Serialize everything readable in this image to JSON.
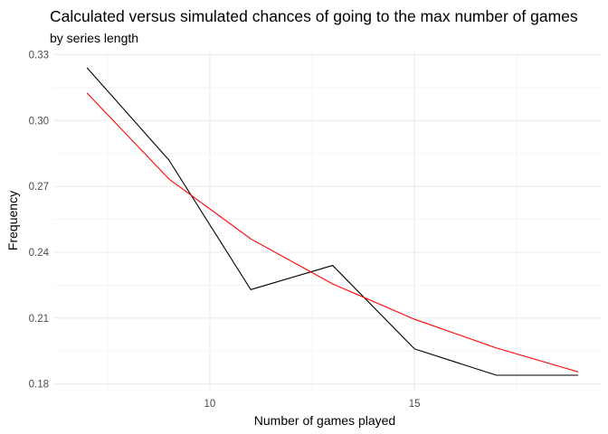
{
  "chart_data": {
    "type": "line",
    "title": "Calculated versus simulated chances of going to the max number of games",
    "subtitle": "by series length",
    "xlabel": "Number of games played",
    "ylabel": "Frequency",
    "xlim": [
      6.2,
      19.55
    ],
    "ylim": [
      0.177,
      0.331
    ],
    "x_ticks": [
      10,
      15
    ],
    "x_minor_ticks": [
      7.5,
      12.5,
      17.5
    ],
    "y_ticks": [
      0.18,
      0.21,
      0.24,
      0.27,
      0.3,
      0.33
    ],
    "y_tick_labels": [
      "0.18",
      "0.21",
      "0.24",
      "0.27",
      "0.30",
      "0.33"
    ],
    "y_minor_ticks": [
      0.195,
      0.225,
      0.255,
      0.285,
      0.315
    ],
    "x_tick_labels": [
      "10",
      "15"
    ],
    "grid": true,
    "legend": "none",
    "series": [
      {
        "color": "#000000",
        "x": [
          7,
          9,
          11,
          13,
          15,
          17,
          19
        ],
        "y": [
          0.324,
          0.282,
          0.223,
          0.234,
          0.196,
          0.184,
          0.184
        ]
      },
      {
        "color": "#ff0000",
        "x": [
          7,
          9,
          11,
          13,
          15,
          17,
          19
        ],
        "y": [
          0.3125,
          0.2734,
          0.2461,
          0.2256,
          0.2095,
          0.1964,
          0.1855
        ]
      }
    ]
  }
}
